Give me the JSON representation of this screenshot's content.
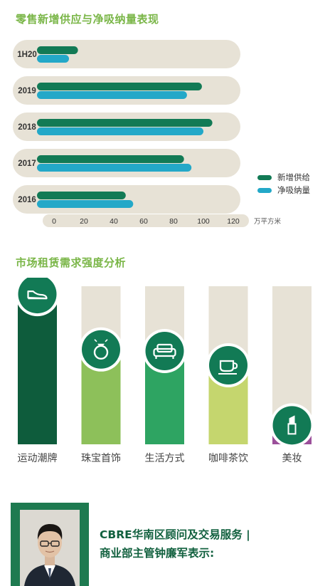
{
  "section1": {
    "title": "零售新增供应与净吸纳量表现"
  },
  "section2": {
    "title": "市场租赁需求强度分析"
  },
  "colors": {
    "supply": "#127a55",
    "absorption": "#23a8c8",
    "accent_green": "#7ab648",
    "track": "#e7e2d6"
  },
  "chart_data": [
    {
      "type": "bar",
      "orientation": "horizontal",
      "categories": [
        "1H20",
        "2019",
        "2018",
        "2017",
        "2016"
      ],
      "series": [
        {
          "name": "新增供给",
          "color": "#127a55",
          "values": [
            16,
            99,
            106,
            87,
            48
          ]
        },
        {
          "name": "净吸纳量",
          "color": "#23a8c8",
          "values": [
            10,
            89,
            100,
            92,
            53
          ]
        }
      ],
      "xticks": [
        0,
        20,
        40,
        60,
        80,
        100,
        120
      ],
      "unit": "万平方米",
      "xlim": [
        0,
        130
      ],
      "legend": "right"
    },
    {
      "type": "bar",
      "orientation": "vertical",
      "categories": [
        "运动潮牌",
        "珠宝首饰",
        "生活方式",
        "咖啡茶饮",
        "美妆"
      ],
      "icons": [
        "sneaker-icon",
        "ring-icon",
        "sofa-icon",
        "coffee-cup-icon",
        "lipstick-icon"
      ],
      "values": [
        0.95,
        0.6,
        0.59,
        0.5,
        0.12
      ],
      "colors": [
        "#0e5c3c",
        "#8dc05a",
        "#2ea462",
        "#c5d66e",
        "#9b4f9a"
      ]
    }
  ],
  "quote": {
    "line1": "CBRE华南区顾问及交易服务 |",
    "line2": "商业部主管钟廉军表示:"
  },
  "photo": {
    "label": "person-photo"
  }
}
